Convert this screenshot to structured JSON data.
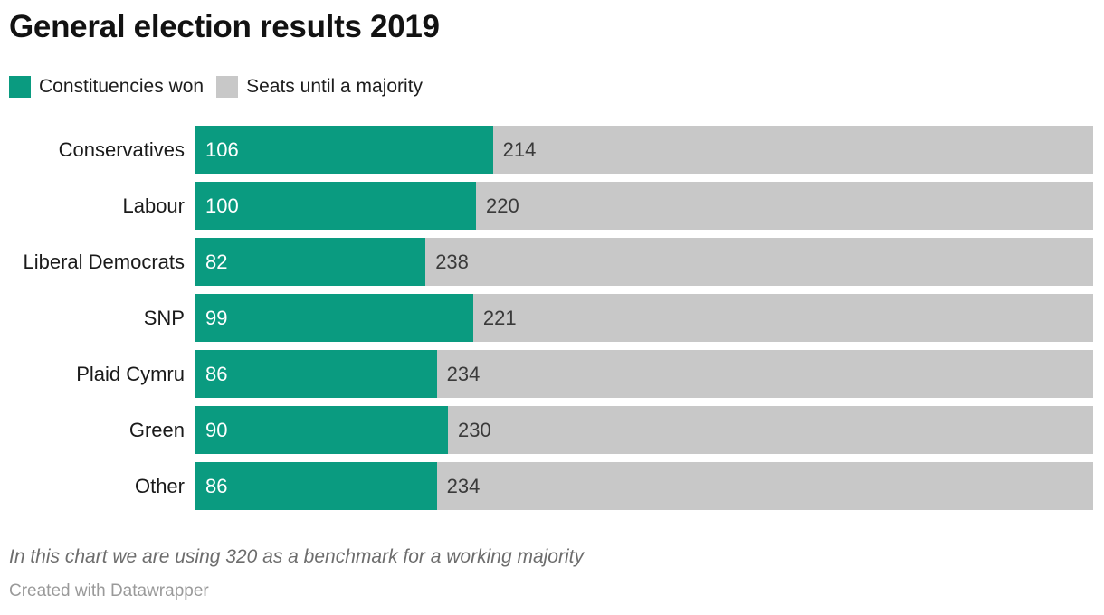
{
  "header": {
    "title": "General election results 2019"
  },
  "legend": {
    "position": "top",
    "items": [
      {
        "label": "Constituencies won",
        "color": "#0a9b80"
      },
      {
        "label": "Seats until a majority",
        "color": "#c8c8c8"
      }
    ]
  },
  "chart_data": {
    "type": "bar",
    "orientation": "horizontal",
    "stacked": true,
    "title": "General election results 2019",
    "xlabel": "",
    "ylabel": "",
    "xlim": [
      0,
      320
    ],
    "grid": false,
    "legend_position": "top",
    "benchmark_total": 320,
    "categories": [
      "Conservatives",
      "Labour",
      "Liberal Democrats",
      "SNP",
      "Plaid Cymru",
      "Green",
      "Other"
    ],
    "series": [
      {
        "name": "Constituencies won",
        "color": "#0a9b80",
        "values": [
          106,
          100,
          82,
          99,
          86,
          90,
          86
        ]
      },
      {
        "name": "Seats until a majority",
        "color": "#c8c8c8",
        "values": [
          214,
          220,
          238,
          221,
          234,
          230,
          234
        ]
      }
    ]
  },
  "colors": {
    "won": "#0a9b80",
    "remaining": "#c8c8c8",
    "background": "#ffffff"
  },
  "footer": {
    "note": "In this chart we are using 320 as a benchmark for a working majority",
    "attribution": "Created with Datawrapper"
  }
}
